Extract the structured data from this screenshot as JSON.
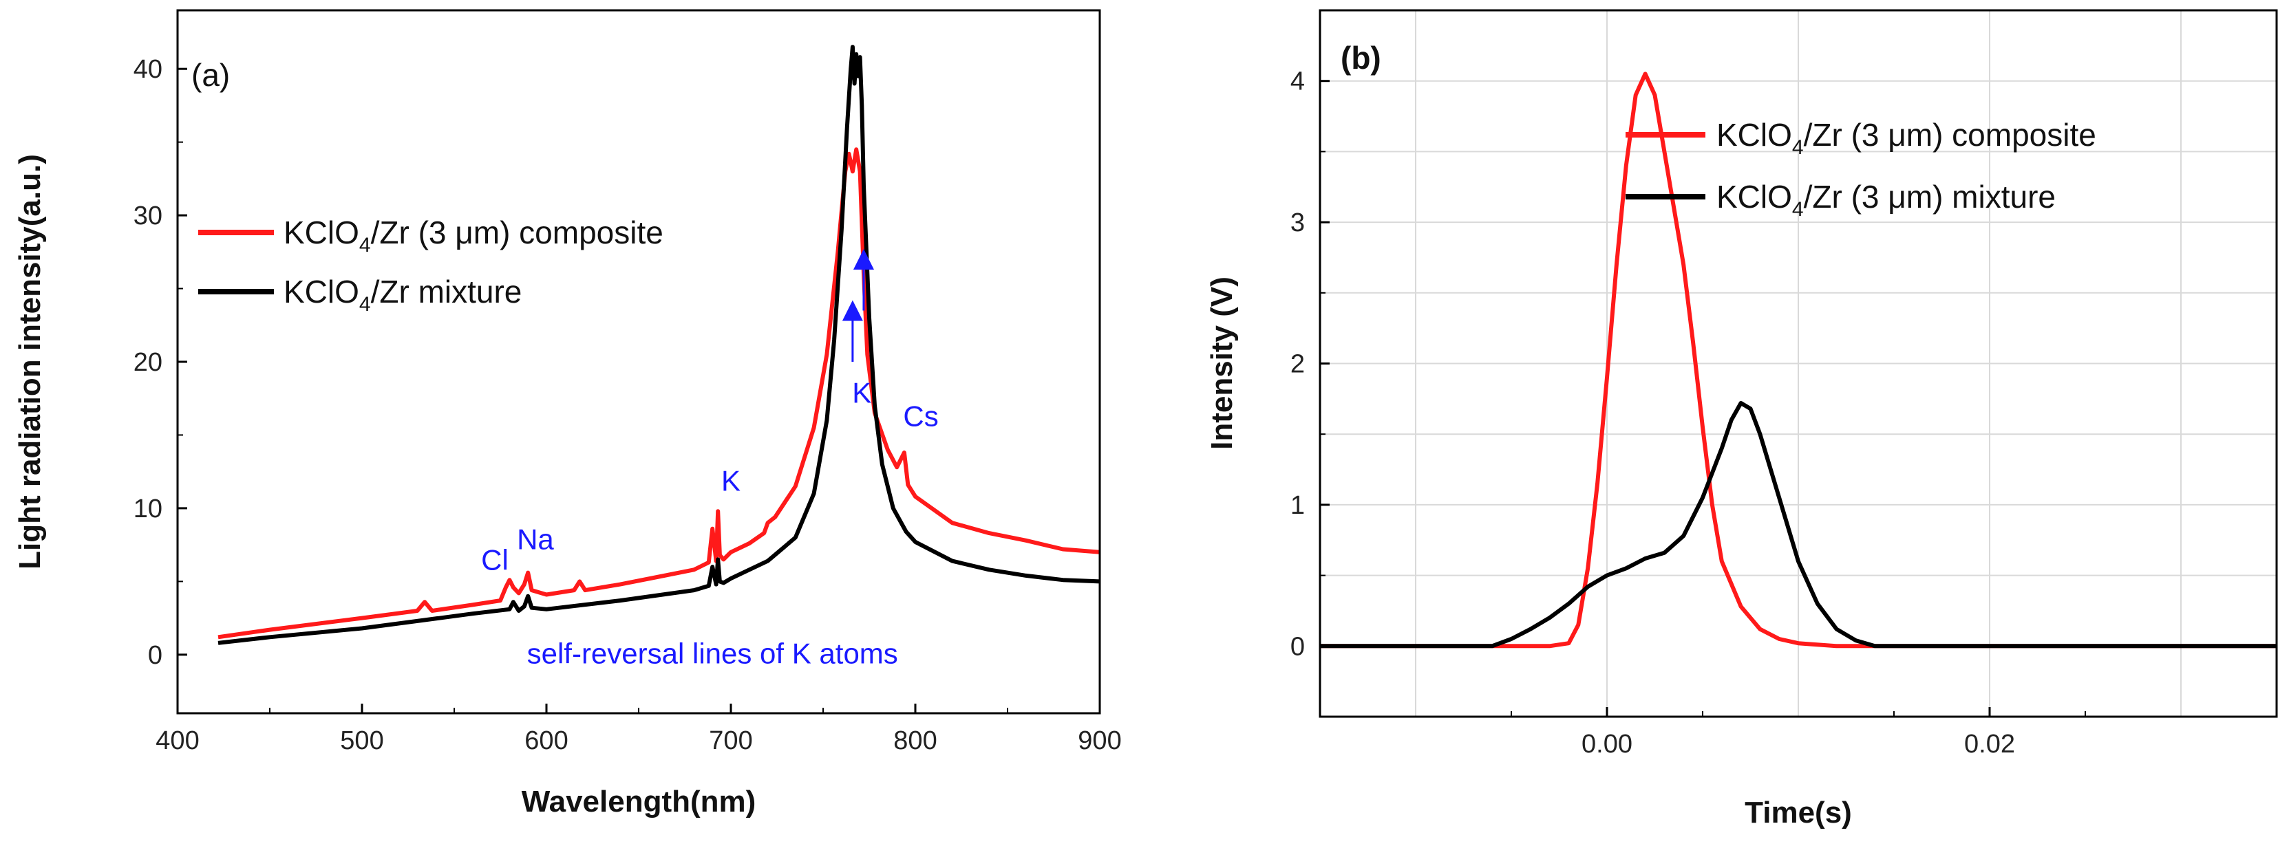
{
  "chart_data": [
    {
      "type": "line",
      "panel_label": "(a)",
      "xlabel": "Wavelength(nm)",
      "ylabel": "Light radiation intensity(a.u.)",
      "xlim": [
        400,
        900
      ],
      "ylim": [
        -4,
        44
      ],
      "xticks": [
        400,
        500,
        600,
        700,
        800,
        900
      ],
      "yticks": [
        0,
        10,
        20,
        30,
        40
      ],
      "tick_labels_x": [
        "400",
        "500",
        "600",
        "700",
        "800",
        "900"
      ],
      "tick_labels_y": [
        "0",
        "10",
        "20",
        "30",
        "40"
      ],
      "legend": {
        "placement": "upper-left",
        "items": [
          {
            "label_pre": "KClO",
            "sub": "4",
            "label_post": "/Zr (3 μm) composite",
            "color": "#ff1a1a"
          },
          {
            "label_pre": "KClO",
            "sub": "4",
            "label_post": "/Zr mixture",
            "color": "#000000"
          }
        ]
      },
      "series": [
        {
          "name": "KClO4/Zr (3 μm) composite",
          "color": "#ff1a1a",
          "x": [
            422,
            450,
            500,
            530,
            534,
            538,
            560,
            575,
            578,
            580,
            582,
            585,
            588,
            590,
            592,
            600,
            615,
            618,
            621,
            640,
            660,
            680,
            688,
            690,
            692,
            693,
            694,
            696,
            700,
            710,
            718,
            720,
            724,
            735,
            745,
            752,
            758,
            762,
            764,
            766,
            768,
            770,
            772,
            774,
            778,
            785,
            790,
            794,
            796,
            800,
            820,
            840,
            860,
            880,
            900
          ],
          "y": [
            1.2,
            1.7,
            2.5,
            3.0,
            3.6,
            3.0,
            3.4,
            3.7,
            4.6,
            5.1,
            4.6,
            4.2,
            4.8,
            5.6,
            4.4,
            4.1,
            4.4,
            5.0,
            4.4,
            4.8,
            5.3,
            5.8,
            6.3,
            8.6,
            6.4,
            9.8,
            6.8,
            6.5,
            7.0,
            7.6,
            8.3,
            9.0,
            9.4,
            11.5,
            15.5,
            20.5,
            27.5,
            33.0,
            34.2,
            33.0,
            34.5,
            33.0,
            26.0,
            20.5,
            16.5,
            14.0,
            12.8,
            13.8,
            11.6,
            10.8,
            9.0,
            8.3,
            7.8,
            7.2,
            7.0
          ]
        },
        {
          "name": "KClO4/Zr mixture",
          "color": "#000000",
          "x": [
            422,
            450,
            500,
            530,
            560,
            580,
            582,
            585,
            588,
            590,
            592,
            600,
            640,
            680,
            688,
            690,
            692,
            693,
            694,
            696,
            700,
            720,
            735,
            745,
            752,
            756,
            760,
            763,
            765,
            766,
            767,
            768,
            769,
            770,
            771,
            772,
            775,
            778,
            782,
            788,
            795,
            800,
            820,
            840,
            860,
            880,
            900
          ],
          "y": [
            0.8,
            1.2,
            1.8,
            2.3,
            2.8,
            3.1,
            3.6,
            3.0,
            3.3,
            4.0,
            3.2,
            3.1,
            3.7,
            4.4,
            4.7,
            6.0,
            4.8,
            6.5,
            5.0,
            4.9,
            5.2,
            6.4,
            8.0,
            11.0,
            16.0,
            21.5,
            29.0,
            36.0,
            40.0,
            41.5,
            39.0,
            41.0,
            39.5,
            40.8,
            37.5,
            32.0,
            23.0,
            17.0,
            13.0,
            10.0,
            8.4,
            7.7,
            6.4,
            5.8,
            5.4,
            5.1,
            5.0
          ]
        }
      ],
      "annotations": [
        {
          "text": "Cl",
          "x": 572,
          "y": 5.8
        },
        {
          "text": "Na",
          "x": 594,
          "y": 7.2
        },
        {
          "text": "K",
          "x": 700,
          "y": 11.2
        },
        {
          "text": "K",
          "x": 771,
          "y": 17.2
        },
        {
          "text": "Cs",
          "x": 803,
          "y": 15.6
        },
        {
          "text": "self-reversal lines of K atoms",
          "x": 690,
          "y": -0.6
        }
      ],
      "arrows": [
        {
          "x": 766,
          "y_from": 20.0,
          "y_to": 23.5
        },
        {
          "x": 772,
          "y_from": 23.5,
          "y_to": 27.0
        }
      ]
    },
    {
      "type": "line",
      "panel_label": "(b)",
      "xlabel": "Time(s)",
      "ylabel": "Intensity (V)",
      "xlim": [
        -0.015,
        0.035
      ],
      "ylim": [
        -0.5,
        4.5
      ],
      "xticks": [
        0.0,
        0.02
      ],
      "yticks": [
        0,
        1,
        2,
        3,
        4
      ],
      "tick_labels_x": [
        "0.00",
        "0.02"
      ],
      "tick_labels_y": [
        "0",
        "1",
        "2",
        "3",
        "4"
      ],
      "legend": {
        "placement": "upper-right",
        "items": [
          {
            "label_pre": "KClO",
            "sub": "4",
            "label_post": "/Zr (3 μm) composite",
            "color": "#ff1a1a"
          },
          {
            "label_pre": "KClO",
            "sub": "4",
            "label_post": "/Zr (3 μm) mixture",
            "color": "#000000"
          }
        ]
      },
      "series": [
        {
          "name": "KClO4/Zr (3 μm) composite",
          "color": "#ff1a1a",
          "x": [
            -0.015,
            -0.003,
            -0.002,
            -0.0015,
            -0.001,
            -0.0005,
            0.0,
            0.0005,
            0.001,
            0.0015,
            0.002,
            0.0025,
            0.003,
            0.0035,
            0.004,
            0.0045,
            0.005,
            0.0055,
            0.006,
            0.007,
            0.008,
            0.009,
            0.01,
            0.012,
            0.035
          ],
          "y": [
            0.0,
            0.0,
            0.02,
            0.15,
            0.55,
            1.15,
            1.9,
            2.7,
            3.4,
            3.9,
            4.05,
            3.9,
            3.5,
            3.1,
            2.7,
            2.15,
            1.55,
            1.0,
            0.6,
            0.28,
            0.12,
            0.05,
            0.02,
            0.0,
            0.0
          ]
        },
        {
          "name": "KClO4/Zr (3 μm) mixture",
          "color": "#000000",
          "x": [
            -0.015,
            -0.006,
            -0.005,
            -0.004,
            -0.003,
            -0.002,
            -0.001,
            0.0,
            0.001,
            0.002,
            0.003,
            0.004,
            0.005,
            0.006,
            0.0065,
            0.007,
            0.0075,
            0.008,
            0.009,
            0.01,
            0.011,
            0.012,
            0.013,
            0.014,
            0.035
          ],
          "y": [
            0.0,
            0.0,
            0.05,
            0.12,
            0.2,
            0.3,
            0.42,
            0.5,
            0.55,
            0.62,
            0.66,
            0.78,
            1.05,
            1.4,
            1.6,
            1.72,
            1.68,
            1.5,
            1.05,
            0.6,
            0.3,
            0.12,
            0.04,
            0.0,
            0.0
          ]
        }
      ]
    }
  ]
}
